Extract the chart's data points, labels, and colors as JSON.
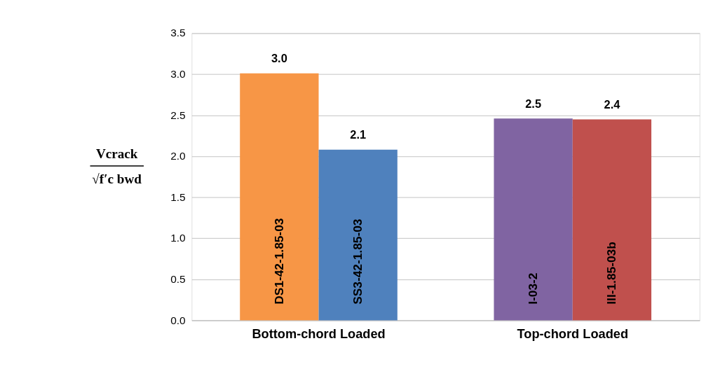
{
  "chart_data": {
    "type": "bar",
    "ylabel": "Vcrack\n√f′c bwd",
    "categories": [
      "Bottom-chord Loaded",
      "Top-chord Loaded"
    ],
    "series": [
      {
        "name": "DS1-42-1.85-03",
        "color": "#f79646",
        "values": [
          3.01,
          null
        ],
        "value_labels": [
          "3.0",
          null
        ]
      },
      {
        "name": "SS3-42-1.85-03",
        "color": "#4f81bd",
        "values": [
          2.08,
          null
        ],
        "value_labels": [
          "2.1",
          null
        ]
      },
      {
        "name": "I-03-2",
        "color": "#8064a2",
        "values": [
          null,
          2.46
        ],
        "value_labels": [
          null,
          "2.5"
        ]
      },
      {
        "name": "III-1.85-03b",
        "color": "#c0504d",
        "values": [
          null,
          2.45
        ],
        "value_labels": [
          null,
          "2.4"
        ]
      }
    ],
    "ylim": [
      0,
      3.5
    ],
    "yticks": [
      {
        "value": 0,
        "label": "0.0"
      },
      {
        "value": 0.5,
        "label": "0.5"
      },
      {
        "value": 1,
        "label": "1.0"
      },
      {
        "value": 1.5,
        "label": "1.5"
      },
      {
        "value": 2,
        "label": "2.0"
      },
      {
        "value": 2.5,
        "label": "2.5"
      },
      {
        "value": 3,
        "label": "3.0"
      },
      {
        "value": 3.5,
        "label": "3.5"
      }
    ],
    "grid": "y",
    "legend": false
  }
}
